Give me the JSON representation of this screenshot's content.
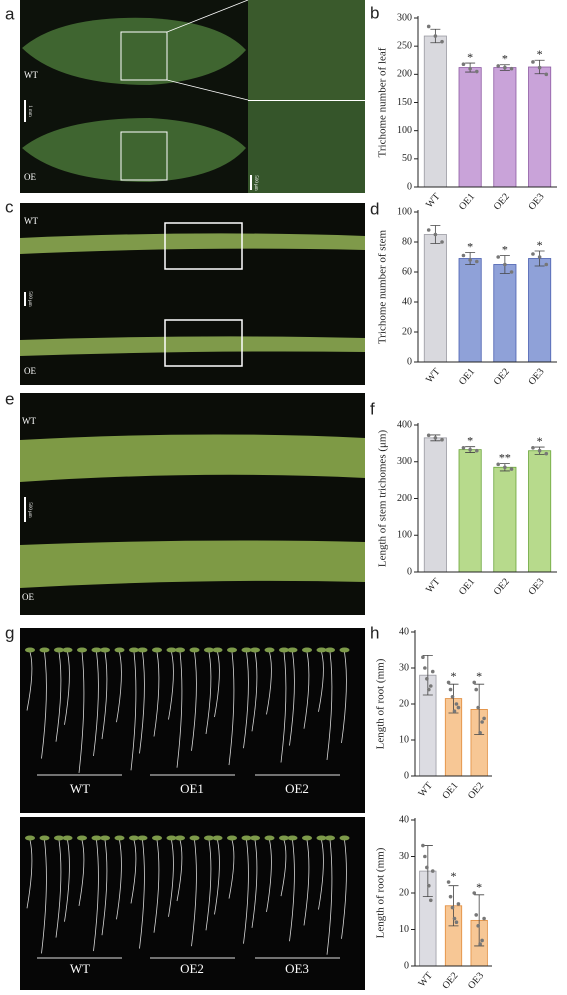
{
  "figure": {
    "panels": [
      "a",
      "b",
      "c",
      "d",
      "e",
      "f",
      "g",
      "h"
    ],
    "photo_labels": [
      "WT",
      "OE",
      "WT",
      "OE",
      "WT",
      "OE"
    ],
    "root_labels": [
      "WT",
      "OE1",
      "OE2",
      "WT",
      "OE2",
      "OE3"
    ],
    "scale_bars": [
      "1 mm",
      "500 μm",
      "500 μm",
      "500 μm"
    ]
  },
  "chart_data": [
    {
      "type": "bar",
      "ylabel": "Trichome number of leaf",
      "categories": [
        "WT",
        "OE1",
        "OE2",
        "OE3"
      ],
      "values": [
        268,
        212,
        212,
        213
      ],
      "errors": [
        12,
        8,
        5,
        12
      ],
      "points": [
        [
          285,
          268,
          258
        ],
        [
          218,
          210,
          205
        ],
        [
          215,
          212,
          210
        ],
        [
          222,
          212,
          200
        ]
      ],
      "annotations": [
        null,
        "*",
        "*",
        "*"
      ],
      "colors": [
        "#d9d9de",
        "#c9a3d9",
        "#c9a3d9",
        "#c9a3d9"
      ],
      "edge_colors": [
        "#9a9aa2",
        "#8d5aa3",
        "#8d5aa3",
        "#8d5aa3"
      ],
      "ylim": [
        0,
        300
      ],
      "yticks": [
        0,
        50,
        100,
        150,
        200,
        250,
        300
      ]
    },
    {
      "type": "bar",
      "ylabel": "Trichome number of stem",
      "categories": [
        "WT",
        "OE1",
        "OE2",
        "OE3"
      ],
      "values": [
        85,
        69,
        65,
        69
      ],
      "errors": [
        6,
        4,
        6,
        5
      ],
      "points": [
        [
          88,
          85,
          80
        ],
        [
          71,
          68,
          67
        ],
        [
          70,
          65,
          60
        ],
        [
          72,
          70,
          65
        ]
      ],
      "annotations": [
        null,
        "*",
        "*",
        "*"
      ],
      "colors": [
        "#d9d9de",
        "#8fa1d8",
        "#8fa1d8",
        "#8fa1d8"
      ],
      "edge_colors": [
        "#9a9aa2",
        "#4a5fb0",
        "#4a5fb0",
        "#4a5fb0"
      ],
      "ylim": [
        0,
        100
      ],
      "yticks": [
        0,
        20,
        40,
        60,
        80,
        100
      ]
    },
    {
      "type": "bar",
      "ylabel": "Length of stem trichomes (μm)",
      "categories": [
        "WT",
        "OE1",
        "OE2",
        "OE3"
      ],
      "values": [
        365,
        333,
        285,
        330
      ],
      "errors": [
        8,
        8,
        10,
        10
      ],
      "points": [
        [
          372,
          365,
          360
        ],
        [
          338,
          333,
          330
        ],
        [
          293,
          285,
          280
        ],
        [
          338,
          330,
          322
        ]
      ],
      "annotations": [
        null,
        "*",
        "**",
        "*"
      ],
      "colors": [
        "#d9d9de",
        "#b7da8c",
        "#b7da8c",
        "#b7da8c"
      ],
      "edge_colors": [
        "#9a9aa2",
        "#6aa53a",
        "#6aa53a",
        "#6aa53a"
      ],
      "ylim": [
        0,
        400
      ],
      "yticks": [
        0,
        100,
        200,
        300,
        400
      ]
    },
    {
      "type": "bar",
      "ylabel": "Length of root (mm)",
      "categories": [
        "WT",
        "OE1",
        "OE2"
      ],
      "values": [
        28,
        21.5,
        18.5
      ],
      "errors": [
        5.5,
        4,
        7
      ],
      "points": [
        [
          33,
          30,
          27,
          24,
          25,
          29
        ],
        [
          26,
          24,
          22,
          18,
          20,
          19
        ],
        [
          26,
          24,
          19,
          12,
          15,
          16
        ]
      ],
      "annotations": [
        null,
        "*",
        "*"
      ],
      "colors": [
        "#dcdce2",
        "#f7c795",
        "#f7c795"
      ],
      "edge_colors": [
        "#9a9aa2",
        "#e08a3a",
        "#e08a3a"
      ],
      "ylim": [
        0,
        40
      ],
      "yticks": [
        0,
        10,
        20,
        30,
        40
      ]
    },
    {
      "type": "bar",
      "ylabel": "Length of root (mm)",
      "categories": [
        "WT",
        "OE2",
        "OE3"
      ],
      "values": [
        26,
        16.5,
        12.5
      ],
      "errors": [
        7,
        5.5,
        7
      ],
      "points": [
        [
          33,
          30,
          27,
          22,
          18,
          26
        ],
        [
          23,
          19,
          16,
          13,
          12,
          17
        ],
        [
          20,
          14,
          11,
          6,
          7,
          13
        ]
      ],
      "annotations": [
        null,
        "*",
        "*"
      ],
      "colors": [
        "#dcdce2",
        "#f7c795",
        "#f7c795"
      ],
      "edge_colors": [
        "#9a9aa2",
        "#e08a3a",
        "#e08a3a"
      ],
      "ylim": [
        0,
        40
      ],
      "yticks": [
        0,
        10,
        20,
        30,
        40
      ]
    }
  ]
}
